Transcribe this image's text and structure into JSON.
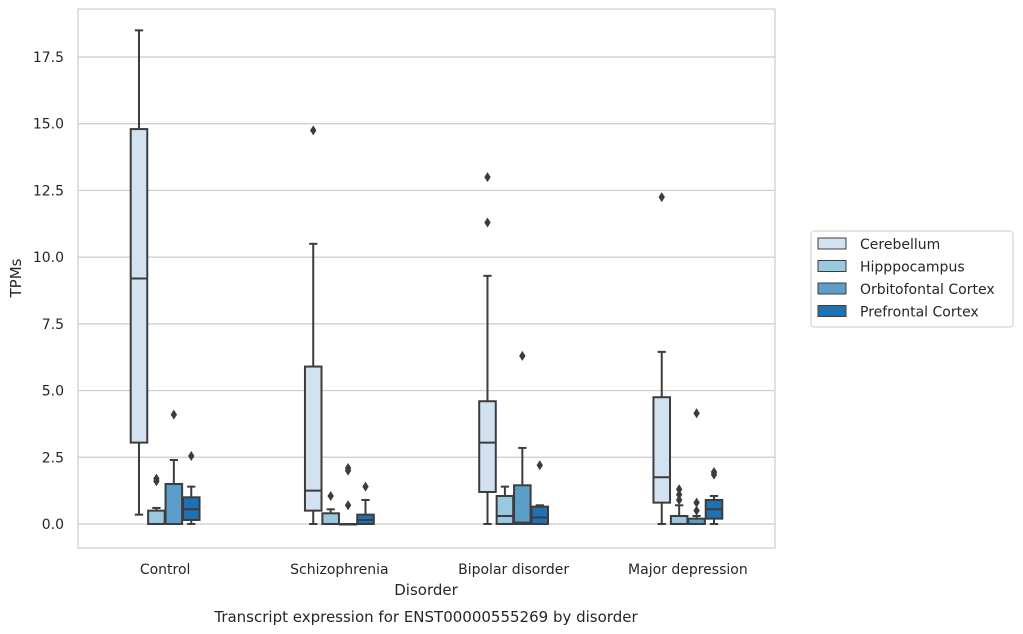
{
  "caption": "Transcript expression for ENST00000555269 by disorder",
  "chart_data": {
    "type": "box",
    "xlabel": "Disorder",
    "ylabel": "TPMs",
    "ylim": [
      -0.9,
      19.3
    ],
    "yticks": [
      "0.0",
      "2.5",
      "5.0",
      "7.5",
      "10.0",
      "12.5",
      "15.0",
      "17.5"
    ],
    "grid": true,
    "legend_position": "right",
    "categories": [
      "Control",
      "Schizophrenia",
      "Bipolar disorder",
      "Major depression"
    ],
    "series": [
      {
        "name": "Cerebellum",
        "color": "#d3e2f1",
        "boxes": [
          {
            "whislo": 0.35,
            "q1": 3.05,
            "med": 9.2,
            "q3": 14.8,
            "whishi": 18.5,
            "fliers": []
          },
          {
            "whislo": 0.0,
            "q1": 0.5,
            "med": 1.25,
            "q3": 5.9,
            "whishi": 10.5,
            "fliers": [
              14.75
            ]
          },
          {
            "whislo": 0.0,
            "q1": 1.2,
            "med": 3.05,
            "q3": 4.6,
            "whishi": 9.3,
            "fliers": [
              11.3,
              13.0
            ]
          },
          {
            "whislo": 0.0,
            "q1": 0.8,
            "med": 1.75,
            "q3": 4.75,
            "whishi": 6.45,
            "fliers": [
              12.25
            ]
          }
        ]
      },
      {
        "name": "Hipppocampus",
        "color": "#9ac8e0",
        "boxes": [
          {
            "whislo": 0.0,
            "q1": 0.0,
            "med": 0.0,
            "q3": 0.5,
            "whishi": 0.6,
            "fliers": [
              1.6,
              1.7
            ]
          },
          {
            "whislo": 0.0,
            "q1": 0.0,
            "med": 0.0,
            "q3": 0.4,
            "whishi": 0.55,
            "fliers": [
              1.05
            ]
          },
          {
            "whislo": 0.0,
            "q1": 0.0,
            "med": 0.3,
            "q3": 1.05,
            "whishi": 1.4,
            "fliers": []
          },
          {
            "whislo": 0.0,
            "q1": 0.0,
            "med": 0.0,
            "q3": 0.3,
            "whishi": 0.7,
            "fliers": [
              0.9,
              1.1,
              1.3
            ]
          }
        ]
      },
      {
        "name": "Orbitofontal Cortex",
        "color": "#5a9ec9",
        "boxes": [
          {
            "whislo": 0.0,
            "q1": 0.0,
            "med": 0.0,
            "q3": 1.5,
            "whishi": 2.4,
            "fliers": [
              4.1
            ]
          },
          {
            "whislo": 0.0,
            "q1": 0.0,
            "med": 0.0,
            "q3": 0.0,
            "whishi": 0.0,
            "fliers": [
              0.7,
              2.0,
              2.1
            ]
          },
          {
            "whislo": 0.0,
            "q1": 0.0,
            "med": 0.05,
            "q3": 1.45,
            "whishi": 2.85,
            "fliers": [
              6.3
            ]
          },
          {
            "whislo": 0.0,
            "q1": 0.0,
            "med": 0.0,
            "q3": 0.2,
            "whishi": 0.3,
            "fliers": [
              0.5,
              0.8,
              4.15
            ]
          }
        ]
      },
      {
        "name": "Prefrontal Cortex",
        "color": "#2070b4",
        "boxes": [
          {
            "whislo": 0.0,
            "q1": 0.15,
            "med": 0.55,
            "q3": 1.0,
            "whishi": 1.4,
            "fliers": [
              2.55
            ]
          },
          {
            "whislo": 0.0,
            "q1": 0.0,
            "med": 0.15,
            "q3": 0.35,
            "whishi": 0.9,
            "fliers": [
              1.4
            ]
          },
          {
            "whislo": 0.0,
            "q1": 0.0,
            "med": 0.25,
            "q3": 0.65,
            "whishi": 0.7,
            "fliers": [
              2.2
            ]
          },
          {
            "whislo": 0.0,
            "q1": 0.2,
            "med": 0.55,
            "q3": 0.9,
            "whishi": 1.05,
            "fliers": [
              1.85,
              1.95
            ]
          }
        ]
      }
    ]
  }
}
